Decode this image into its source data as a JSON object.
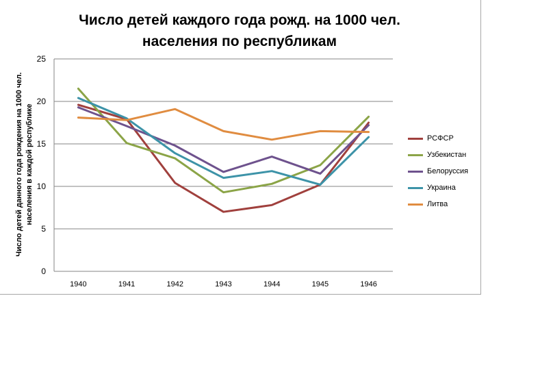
{
  "chart_data": {
    "type": "line",
    "title": "Число детей каждого года рожд. на 1000 чел. населения по республикам",
    "title_lines": [
      "Число детей каждого года рожд. на 1000 чел.",
      "населения по республикам"
    ],
    "xlabel": "",
    "ylabel": "Число детей данного года рождения на 1000 чел. населения в каждой республике",
    "categories": [
      "1940",
      "1941",
      "1942",
      "1943",
      "1944",
      "1945",
      "1946"
    ],
    "ylim": [
      0,
      25
    ],
    "yticks": [
      0,
      5,
      10,
      15,
      20,
      25
    ],
    "grid": "horizontal",
    "legend_position": "right",
    "series": [
      {
        "name": "РСФСР",
        "color": "#a0403d",
        "values": [
          19.6,
          17.9,
          10.4,
          7.0,
          7.8,
          10.2,
          17.5
        ]
      },
      {
        "name": "Узбекистан",
        "color": "#8ba447",
        "values": [
          21.5,
          15.1,
          13.3,
          9.3,
          10.3,
          12.5,
          18.2
        ]
      },
      {
        "name": "Белоруссия",
        "color": "#6e528d",
        "values": [
          19.3,
          17.1,
          14.8,
          11.7,
          13.5,
          11.5,
          17.2
        ]
      },
      {
        "name": "Украина",
        "color": "#3d93a8",
        "values": [
          20.4,
          18.0,
          13.9,
          11.0,
          11.8,
          10.2,
          15.8
        ]
      },
      {
        "name": "Литва",
        "color": "#e08c40",
        "values": [
          18.1,
          17.8,
          19.1,
          16.5,
          15.5,
          16.5,
          16.4
        ]
      }
    ]
  }
}
